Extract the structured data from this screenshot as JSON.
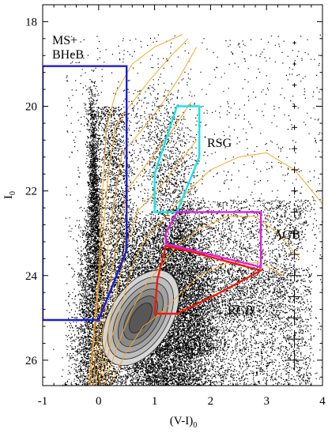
{
  "chart_data": {
    "type": "scatter",
    "title": "",
    "xlabel": "(V-I)",
    "xlabel_subscript": "0",
    "ylabel": "I",
    "ylabel_subscript": "0",
    "xlim": [
      -1,
      4
    ],
    "ylim": [
      26.6,
      17.6
    ],
    "y_inverted": true,
    "grid": false,
    "x_ticks": [
      -1,
      0,
      1,
      2,
      3,
      4
    ],
    "x_tick_labels": [
      "-1",
      "0",
      "1",
      "2",
      "3",
      "4"
    ],
    "y_ticks": [
      18,
      20,
      22,
      24,
      26
    ],
    "y_tick_labels": [
      "18",
      "20",
      "22",
      "24",
      "26"
    ],
    "colors": {
      "stars": "#000000",
      "isochrones": "#f5a623",
      "ms_bheb": "#1c1cd6",
      "rsg": "#17e3ea",
      "agb": "#e020e0",
      "rgb": "#f01a0a",
      "density_levels": [
        "#d6d6d6",
        "#bdbdbd",
        "#a3a3a3",
        "#8a8a8a",
        "#707070",
        "#575757"
      ]
    },
    "regions": [
      {
        "name": "MS+ BHeB",
        "label_lines": [
          "MS+",
          "BHeB"
        ],
        "color": "#1c1cd6",
        "polygon": [
          [
            -1,
            19.05
          ],
          [
            0.5,
            19.05
          ],
          [
            0.5,
            23.4
          ],
          [
            0.35,
            23.9
          ],
          [
            0,
            25.05
          ],
          [
            -1,
            25.05
          ]
        ]
      },
      {
        "name": "RSG",
        "label_lines": [
          "RSG"
        ],
        "color": "#17e3ea",
        "polygon": [
          [
            1.4,
            20.0
          ],
          [
            1.8,
            20.0
          ],
          [
            1.8,
            21.2
          ],
          [
            1.4,
            22.5
          ],
          [
            1.0,
            22.5
          ],
          [
            1.0,
            21.6
          ]
        ]
      },
      {
        "name": "AGB",
        "label_lines": [
          "AGB"
        ],
        "color": "#e020e0",
        "polygon": [
          [
            1.4,
            22.5
          ],
          [
            2.9,
            22.5
          ],
          [
            2.9,
            23.8
          ],
          [
            1.2,
            23.25
          ],
          [
            1.2,
            23.0
          ]
        ]
      },
      {
        "name": "RGB",
        "label_lines": [
          "RGB"
        ],
        "color": "#f01a0a",
        "polygon": [
          [
            1.2,
            23.3
          ],
          [
            1.6,
            23.42
          ],
          [
            2.9,
            23.88
          ],
          [
            2.1,
            24.45
          ],
          [
            1.4,
            24.9
          ],
          [
            1.0,
            24.9
          ],
          [
            1.05,
            24.1
          ]
        ]
      }
    ],
    "error_bars": [
      {
        "x": 3.5,
        "y": 18.5,
        "ex": 0.03,
        "ey": 0.04
      },
      {
        "x": 3.5,
        "y": 19.0,
        "ex": 0.03,
        "ey": 0.05
      },
      {
        "x": 3.5,
        "y": 19.5,
        "ex": 0.04,
        "ey": 0.05
      },
      {
        "x": 3.5,
        "y": 20.0,
        "ex": 0.04,
        "ey": 0.06
      },
      {
        "x": 3.5,
        "y": 20.5,
        "ex": 0.05,
        "ey": 0.06
      },
      {
        "x": 3.5,
        "y": 21.0,
        "ex": 0.05,
        "ey": 0.07
      },
      {
        "x": 3.5,
        "y": 21.5,
        "ex": 0.06,
        "ey": 0.08
      },
      {
        "x": 3.5,
        "y": 22.0,
        "ex": 0.06,
        "ey": 0.09
      },
      {
        "x": 3.5,
        "y": 22.5,
        "ex": 0.07,
        "ey": 0.1
      },
      {
        "x": 3.5,
        "y": 23.0,
        "ex": 0.08,
        "ey": 0.11
      },
      {
        "x": 3.5,
        "y": 23.5,
        "ex": 0.09,
        "ey": 0.12
      },
      {
        "x": 3.5,
        "y": 24.0,
        "ex": 0.1,
        "ey": 0.14
      },
      {
        "x": 3.5,
        "y": 24.5,
        "ex": 0.11,
        "ey": 0.16
      },
      {
        "x": 3.5,
        "y": 25.0,
        "ex": 0.13,
        "ey": 0.18
      },
      {
        "x": 3.5,
        "y": 25.5,
        "ex": 0.14,
        "ey": 0.21
      },
      {
        "x": 3.5,
        "y": 26.0,
        "ex": 0.16,
        "ey": 0.24
      }
    ],
    "density_contours": {
      "center_color": 0.75,
      "center_mag": 25.0,
      "levels": [
        {
          "a": 0.55,
          "b": 1.25
        },
        {
          "a": 0.47,
          "b": 1.08
        },
        {
          "a": 0.39,
          "b": 0.92
        },
        {
          "a": 0.31,
          "b": 0.76
        },
        {
          "a": 0.23,
          "b": 0.58
        },
        {
          "a": 0.15,
          "b": 0.4
        }
      ]
    },
    "isochrones": [
      [
        [
          -0.18,
          26.6
        ],
        [
          -0.1,
          25.5
        ],
        [
          0.0,
          24.0
        ],
        [
          0.07,
          22.0
        ],
        [
          0.14,
          20.5
        ],
        [
          0.3,
          19.7
        ],
        [
          0.6,
          19.0
        ],
        [
          1.0,
          18.6
        ],
        [
          1.5,
          18.3
        ]
      ],
      [
        [
          -0.15,
          26.6
        ],
        [
          -0.05,
          25.0
        ],
        [
          0.08,
          23.0
        ],
        [
          0.18,
          21.5
        ],
        [
          0.3,
          20.5
        ],
        [
          0.55,
          20.0
        ],
        [
          0.9,
          19.4
        ],
        [
          1.3,
          18.8
        ],
        [
          1.6,
          18.4
        ]
      ],
      [
        [
          -0.1,
          26.6
        ],
        [
          0.02,
          25.0
        ],
        [
          0.15,
          23.5
        ],
        [
          0.28,
          22.2
        ],
        [
          0.42,
          21.1
        ],
        [
          0.75,
          20.6
        ],
        [
          1.1,
          20.0
        ],
        [
          1.45,
          19.3
        ],
        [
          1.75,
          18.6
        ]
      ],
      [
        [
          -0.05,
          26.6
        ],
        [
          0.1,
          25.0
        ],
        [
          0.25,
          23.8
        ],
        [
          0.38,
          22.7
        ],
        [
          0.55,
          21.9
        ],
        [
          0.95,
          21.2
        ],
        [
          1.3,
          20.6
        ],
        [
          1.65,
          19.9
        ]
      ],
      [
        [
          0.0,
          26.6
        ],
        [
          0.18,
          25.2
        ],
        [
          0.35,
          24.2
        ],
        [
          0.5,
          23.3
        ],
        [
          0.68,
          22.5
        ],
        [
          1.05,
          22.0
        ],
        [
          1.4,
          21.4
        ],
        [
          1.75,
          20.8
        ]
      ],
      [
        [
          0.05,
          26.6
        ],
        [
          0.25,
          25.4
        ],
        [
          0.45,
          24.5
        ],
        [
          0.62,
          23.7
        ],
        [
          0.85,
          23.1
        ],
        [
          1.2,
          22.6
        ],
        [
          1.6,
          22.0
        ],
        [
          2.0,
          21.5
        ],
        [
          2.5,
          21.2
        ],
        [
          3.0,
          21.1
        ],
        [
          3.5,
          21.5
        ],
        [
          4.0,
          22.3
        ]
      ],
      [
        [
          0.1,
          26.6
        ],
        [
          0.35,
          25.6
        ],
        [
          0.6,
          24.8
        ],
        [
          0.85,
          24.2
        ],
        [
          1.1,
          23.8
        ],
        [
          1.4,
          23.3
        ],
        [
          1.8,
          22.9
        ],
        [
          2.3,
          22.6
        ],
        [
          2.8,
          22.6
        ],
        [
          3.2,
          23.0
        ],
        [
          3.6,
          23.6
        ]
      ],
      [
        [
          0.2,
          26.6
        ],
        [
          0.5,
          25.8
        ],
        [
          0.8,
          25.2
        ],
        [
          1.1,
          24.9
        ],
        [
          1.4,
          24.5
        ],
        [
          1.8,
          24.0
        ],
        [
          2.3,
          23.7
        ],
        [
          2.9,
          23.7
        ],
        [
          3.3,
          24.0
        ]
      ]
    ]
  }
}
